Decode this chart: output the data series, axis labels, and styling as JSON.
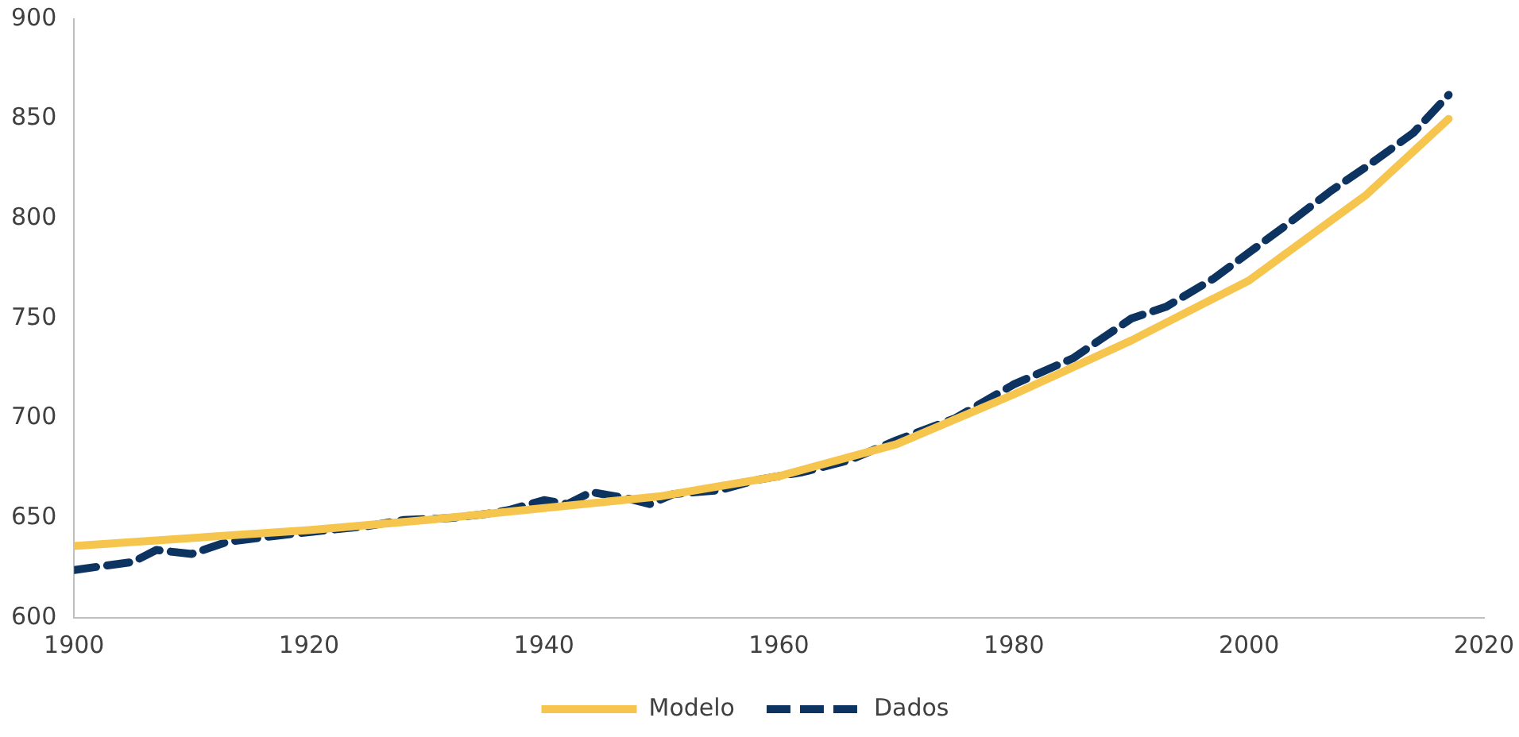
{
  "chart_data": {
    "type": "line",
    "xlim": [
      1900,
      2020
    ],
    "xticks": [
      1900,
      1920,
      1940,
      1960,
      1980,
      2000,
      2020
    ],
    "ylim": [
      600,
      900
    ],
    "yticks": [
      600,
      650,
      700,
      750,
      800,
      850,
      900
    ],
    "grid": false,
    "legend": "bottom",
    "series": [
      {
        "name": "Modelo",
        "color": "#f5c54e",
        "line_style": "solid",
        "x": [
          1900,
          1910,
          1920,
          1930,
          1940,
          1950,
          1960,
          1970,
          1980,
          1990,
          2000,
          2010,
          2017
        ],
        "values": [
          636,
          640,
          644,
          649,
          655,
          661,
          671,
          687,
          712,
          739,
          769,
          812,
          850
        ]
      },
      {
        "name": "Dados",
        "color": "#0d3461",
        "line_style": "dashed",
        "x": [
          1900,
          1905,
          1907,
          1910,
          1913,
          1917,
          1920,
          1925,
          1928,
          1932,
          1935,
          1937,
          1940,
          1942,
          1944,
          1947,
          1949,
          1951,
          1955,
          1958,
          1962,
          1966,
          1970,
          1975,
          1980,
          1985,
          1988,
          1990,
          1993,
          1997,
          2000,
          2003,
          2007,
          2010,
          2014,
          2017
        ],
        "values": [
          624,
          628,
          634,
          632,
          638,
          641,
          643,
          646,
          649,
          650,
          652,
          654,
          659,
          657,
          663,
          660,
          657,
          662,
          664,
          669,
          673,
          679,
          689,
          700,
          717,
          730,
          742,
          750,
          756,
          770,
          783,
          796,
          814,
          826,
          843,
          862
        ]
      }
    ]
  }
}
